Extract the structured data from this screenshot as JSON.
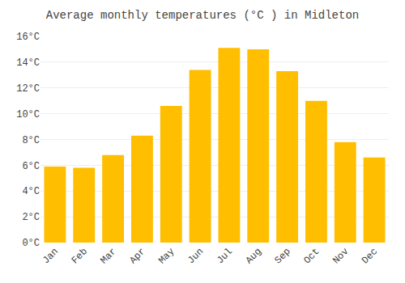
{
  "chart_data": {
    "type": "bar",
    "title": "Average monthly temperatures (°C ) in Midleton",
    "categories": [
      "Jan",
      "Feb",
      "Mar",
      "Apr",
      "May",
      "Jun",
      "Jul",
      "Aug",
      "Sep",
      "Oct",
      "Nov",
      "Dec"
    ],
    "values": [
      5.9,
      5.8,
      6.8,
      8.3,
      10.6,
      13.4,
      15.1,
      15.0,
      13.3,
      11.0,
      7.8,
      6.6
    ],
    "color": "#FFBE00",
    "ylim": [
      0,
      16
    ],
    "yticks": [
      {
        "value": 0,
        "label": "0°C"
      },
      {
        "value": 2,
        "label": "2°C"
      },
      {
        "value": 4,
        "label": "4°C"
      },
      {
        "value": 6,
        "label": "6°C"
      },
      {
        "value": 8,
        "label": "8°C"
      },
      {
        "value": 10,
        "label": "10°C"
      },
      {
        "value": 12,
        "label": "12°C"
      },
      {
        "value": 14,
        "label": "14°C"
      },
      {
        "value": 16,
        "label": "16°C"
      }
    ],
    "grid": true
  }
}
